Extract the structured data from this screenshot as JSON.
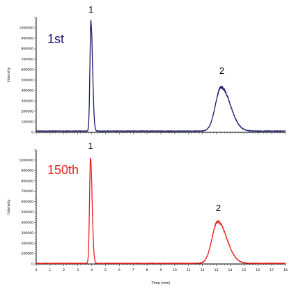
{
  "chart_data": [
    {
      "type": "line",
      "panel_label": "1st",
      "ylabel": "Intensity",
      "ylim": [
        0,
        1100000
      ],
      "yticks": [
        0,
        100000,
        200000,
        300000,
        400000,
        500000,
        600000,
        700000,
        800000,
        900000,
        1000000
      ],
      "xlim": [
        0,
        18
      ],
      "color": "#1a1a6e",
      "peaks": [
        {
          "label": "1",
          "x": 3.95,
          "height": 1050000,
          "width": 0.09
        },
        {
          "label": "2",
          "x": 13.35,
          "height": 420000,
          "width": 0.45
        }
      ],
      "baseline": 12000
    },
    {
      "type": "line",
      "panel_label": "150th",
      "xlabel": "Time (min)",
      "ylabel": "Intensity",
      "ylim": [
        0,
        1100000
      ],
      "yticks": [
        0,
        100000,
        200000,
        300000,
        400000,
        500000,
        600000,
        700000,
        800000,
        900000,
        1000000
      ],
      "xlim": [
        0,
        18
      ],
      "xticks": [
        0,
        1,
        2,
        3,
        4,
        5,
        6,
        7,
        8,
        9,
        10,
        11,
        12,
        13,
        14,
        15,
        16,
        17,
        18
      ],
      "color": "#e8211a",
      "peaks": [
        {
          "label": "1",
          "x": 3.92,
          "height": 1010000,
          "width": 0.09
        },
        {
          "label": "2",
          "x": 13.1,
          "height": 400000,
          "width": 0.45
        }
      ],
      "baseline": 6000
    }
  ]
}
